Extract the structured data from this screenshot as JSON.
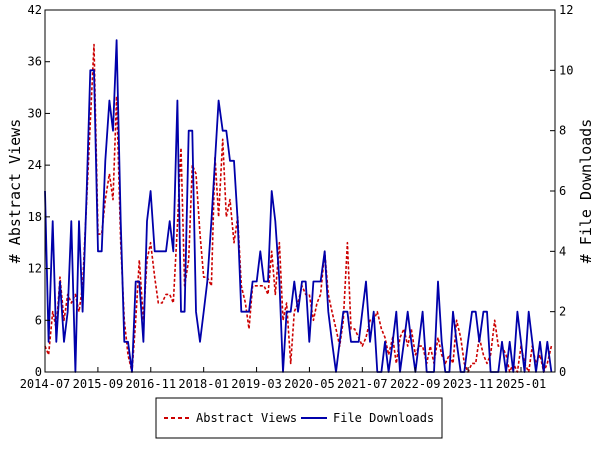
{
  "chart_data": {
    "type": "line",
    "ylabel": "# Abstract Views",
    "y2label": "# File Downloads",
    "ylim": [
      0,
      42
    ],
    "y2lim": [
      0,
      12
    ],
    "yticks": [
      0,
      6,
      12,
      18,
      24,
      30,
      36,
      42
    ],
    "y2ticks": [
      0,
      2,
      4,
      6,
      8,
      10,
      12
    ],
    "xlim": [
      2014.5,
      2025.75
    ],
    "xticks": [
      {
        "x": 2014.5,
        "label": "2014-07"
      },
      {
        "x": 2015.667,
        "label": "2015-09"
      },
      {
        "x": 2016.833,
        "label": "2016-11"
      },
      {
        "x": 2018.0,
        "label": "2018-01"
      },
      {
        "x": 2019.167,
        "label": "2019-03"
      },
      {
        "x": 2020.333,
        "label": "2020-05"
      },
      {
        "x": 2021.5,
        "label": "2021-07"
      },
      {
        "x": 2022.667,
        "label": "2022-09"
      },
      {
        "x": 2023.833,
        "label": "2023-11"
      },
      {
        "x": 2025.0,
        "label": "2025-01"
      }
    ],
    "grid": false,
    "legend_position": "bottom-center",
    "series": [
      {
        "name": "Abstract Views",
        "axis": "left",
        "color": "#cc0000",
        "dash": true,
        "points": [
          [
            2014.5,
            3
          ],
          [
            2014.58,
            2
          ],
          [
            2014.67,
            7
          ],
          [
            2014.75,
            5
          ],
          [
            2014.83,
            11
          ],
          [
            2014.92,
            6
          ],
          [
            2015.0,
            9
          ],
          [
            2015.08,
            8
          ],
          [
            2015.17,
            9
          ],
          [
            2015.25,
            7
          ],
          [
            2015.33,
            10
          ],
          [
            2015.42,
            20
          ],
          [
            2015.5,
            29
          ],
          [
            2015.58,
            38
          ],
          [
            2015.67,
            16
          ],
          [
            2015.75,
            16
          ],
          [
            2015.83,
            20
          ],
          [
            2015.92,
            23
          ],
          [
            2016.0,
            20
          ],
          [
            2016.08,
            32
          ],
          [
            2016.17,
            15
          ],
          [
            2016.25,
            6
          ],
          [
            2016.33,
            2
          ],
          [
            2016.42,
            0
          ],
          [
            2016.5,
            6
          ],
          [
            2016.58,
            13
          ],
          [
            2016.67,
            6
          ],
          [
            2016.75,
            13
          ],
          [
            2016.83,
            15
          ],
          [
            2016.92,
            11
          ],
          [
            2017.0,
            8
          ],
          [
            2017.08,
            8
          ],
          [
            2017.17,
            9
          ],
          [
            2017.25,
            9
          ],
          [
            2017.33,
            8
          ],
          [
            2017.42,
            17
          ],
          [
            2017.5,
            26
          ],
          [
            2017.58,
            10
          ],
          [
            2017.67,
            13
          ],
          [
            2017.75,
            24
          ],
          [
            2017.83,
            23
          ],
          [
            2017.92,
            16
          ],
          [
            2018.0,
            11
          ],
          [
            2018.08,
            11
          ],
          [
            2018.17,
            10
          ],
          [
            2018.25,
            25
          ],
          [
            2018.33,
            18
          ],
          [
            2018.42,
            27
          ],
          [
            2018.5,
            18
          ],
          [
            2018.58,
            20
          ],
          [
            2018.67,
            15
          ],
          [
            2018.75,
            18
          ],
          [
            2018.83,
            10
          ],
          [
            2018.92,
            8
          ],
          [
            2019.0,
            5
          ],
          [
            2019.08,
            10
          ],
          [
            2019.17,
            10
          ],
          [
            2019.25,
            10
          ],
          [
            2019.33,
            10
          ],
          [
            2019.42,
            9
          ],
          [
            2019.5,
            14
          ],
          [
            2019.58,
            9
          ],
          [
            2019.67,
            15
          ],
          [
            2019.75,
            6
          ],
          [
            2019.83,
            8
          ],
          [
            2019.92,
            1
          ],
          [
            2020.0,
            7
          ],
          [
            2020.08,
            8
          ],
          [
            2020.17,
            10
          ],
          [
            2020.25,
            9
          ],
          [
            2020.33,
            9
          ],
          [
            2020.42,
            6
          ],
          [
            2020.5,
            8
          ],
          [
            2020.58,
            9
          ],
          [
            2020.67,
            14
          ],
          [
            2020.75,
            9
          ],
          [
            2020.83,
            7
          ],
          [
            2020.92,
            5
          ],
          [
            2021.0,
            3
          ],
          [
            2021.08,
            6
          ],
          [
            2021.17,
            15
          ],
          [
            2021.25,
            5
          ],
          [
            2021.33,
            5
          ],
          [
            2021.42,
            4
          ],
          [
            2021.5,
            3
          ],
          [
            2021.58,
            4
          ],
          [
            2021.67,
            6
          ],
          [
            2021.75,
            6
          ],
          [
            2021.83,
            7
          ],
          [
            2021.92,
            5
          ],
          [
            2022.0,
            4
          ],
          [
            2022.08,
            2
          ],
          [
            2022.17,
            4
          ],
          [
            2022.25,
            1
          ],
          [
            2022.33,
            4
          ],
          [
            2022.42,
            5
          ],
          [
            2022.5,
            3
          ],
          [
            2022.58,
            5
          ],
          [
            2022.67,
            2
          ],
          [
            2022.75,
            3
          ],
          [
            2022.83,
            3
          ],
          [
            2022.92,
            1
          ],
          [
            2023.0,
            3
          ],
          [
            2023.08,
            1
          ],
          [
            2023.17,
            4
          ],
          [
            2023.25,
            2
          ],
          [
            2023.33,
            1
          ],
          [
            2023.42,
            2
          ],
          [
            2023.5,
            1
          ],
          [
            2023.58,
            6
          ],
          [
            2023.67,
            4
          ],
          [
            2023.75,
            1
          ],
          [
            2023.83,
            0
          ],
          [
            2023.92,
            1
          ],
          [
            2024.0,
            1
          ],
          [
            2024.08,
            4
          ],
          [
            2024.17,
            2
          ],
          [
            2024.25,
            1
          ],
          [
            2024.33,
            2
          ],
          [
            2024.42,
            6
          ],
          [
            2024.5,
            3
          ],
          [
            2024.58,
            3
          ],
          [
            2024.67,
            2
          ],
          [
            2024.75,
            0
          ],
          [
            2024.83,
            1
          ],
          [
            2024.92,
            0
          ],
          [
            2025.0,
            3
          ],
          [
            2025.08,
            1
          ],
          [
            2025.17,
            0
          ],
          [
            2025.25,
            3
          ],
          [
            2025.33,
            1
          ],
          [
            2025.42,
            2
          ],
          [
            2025.5,
            0
          ],
          [
            2025.58,
            1
          ],
          [
            2025.67,
            3
          ]
        ]
      },
      {
        "name": "File Downloads",
        "axis": "right",
        "color": "#0000aa",
        "dash": false,
        "points": [
          [
            2014.5,
            6
          ],
          [
            2014.58,
            1
          ],
          [
            2014.67,
            5
          ],
          [
            2014.75,
            1
          ],
          [
            2014.83,
            3
          ],
          [
            2014.92,
            1
          ],
          [
            2015.0,
            2
          ],
          [
            2015.08,
            5
          ],
          [
            2015.17,
            0
          ],
          [
            2015.25,
            5
          ],
          [
            2015.33,
            2
          ],
          [
            2015.42,
            6
          ],
          [
            2015.5,
            10
          ],
          [
            2015.58,
            10
          ],
          [
            2015.67,
            4
          ],
          [
            2015.75,
            4
          ],
          [
            2015.83,
            7
          ],
          [
            2015.92,
            9
          ],
          [
            2016.0,
            8
          ],
          [
            2016.08,
            11
          ],
          [
            2016.17,
            5
          ],
          [
            2016.25,
            1
          ],
          [
            2016.33,
            1
          ],
          [
            2016.42,
            0
          ],
          [
            2016.5,
            3
          ],
          [
            2016.58,
            3
          ],
          [
            2016.67,
            1
          ],
          [
            2016.75,
            5
          ],
          [
            2016.83,
            6
          ],
          [
            2016.92,
            4
          ],
          [
            2017.0,
            4
          ],
          [
            2017.08,
            4
          ],
          [
            2017.17,
            4
          ],
          [
            2017.25,
            5
          ],
          [
            2017.33,
            4
          ],
          [
            2017.42,
            9
          ],
          [
            2017.5,
            2
          ],
          [
            2017.58,
            2
          ],
          [
            2017.67,
            8
          ],
          [
            2017.75,
            8
          ],
          [
            2017.83,
            2
          ],
          [
            2017.92,
            1
          ],
          [
            2018.0,
            2
          ],
          [
            2018.08,
            3
          ],
          [
            2018.17,
            5
          ],
          [
            2018.25,
            7
          ],
          [
            2018.33,
            9
          ],
          [
            2018.42,
            8
          ],
          [
            2018.5,
            8
          ],
          [
            2018.58,
            7
          ],
          [
            2018.67,
            7
          ],
          [
            2018.75,
            5
          ],
          [
            2018.83,
            2
          ],
          [
            2018.92,
            2
          ],
          [
            2019.0,
            2
          ],
          [
            2019.08,
            3
          ],
          [
            2019.17,
            3
          ],
          [
            2019.25,
            4
          ],
          [
            2019.33,
            3
          ],
          [
            2019.42,
            3
          ],
          [
            2019.5,
            6
          ],
          [
            2019.58,
            5
          ],
          [
            2019.67,
            3
          ],
          [
            2019.75,
            0
          ],
          [
            2019.83,
            2
          ],
          [
            2019.92,
            2
          ],
          [
            2020.0,
            3
          ],
          [
            2020.08,
            2
          ],
          [
            2020.17,
            3
          ],
          [
            2020.25,
            3
          ],
          [
            2020.33,
            1
          ],
          [
            2020.42,
            3
          ],
          [
            2020.5,
            3
          ],
          [
            2020.58,
            3
          ],
          [
            2020.67,
            4
          ],
          [
            2020.75,
            2
          ],
          [
            2020.83,
            1
          ],
          [
            2020.92,
            0
          ],
          [
            2021.0,
            1
          ],
          [
            2021.08,
            2
          ],
          [
            2021.17,
            2
          ],
          [
            2021.25,
            1
          ],
          [
            2021.33,
            1
          ],
          [
            2021.42,
            1
          ],
          [
            2021.5,
            2
          ],
          [
            2021.58,
            3
          ],
          [
            2021.67,
            1
          ],
          [
            2021.75,
            2
          ],
          [
            2021.83,
            0
          ],
          [
            2021.92,
            0
          ],
          [
            2022.0,
            1
          ],
          [
            2022.08,
            0
          ],
          [
            2022.17,
            1
          ],
          [
            2022.25,
            2
          ],
          [
            2022.33,
            0
          ],
          [
            2022.42,
            1
          ],
          [
            2022.5,
            2
          ],
          [
            2022.58,
            1
          ],
          [
            2022.67,
            0
          ],
          [
            2022.75,
            1
          ],
          [
            2022.83,
            2
          ],
          [
            2022.92,
            0
          ],
          [
            2023.0,
            0
          ],
          [
            2023.08,
            0
          ],
          [
            2023.17,
            3
          ],
          [
            2023.25,
            1
          ],
          [
            2023.33,
            0
          ],
          [
            2023.42,
            0
          ],
          [
            2023.5,
            2
          ],
          [
            2023.58,
            1
          ],
          [
            2023.67,
            0
          ],
          [
            2023.75,
            0
          ],
          [
            2023.83,
            1
          ],
          [
            2023.92,
            2
          ],
          [
            2024.0,
            2
          ],
          [
            2024.08,
            1
          ],
          [
            2024.17,
            2
          ],
          [
            2024.25,
            2
          ],
          [
            2024.33,
            0
          ],
          [
            2024.42,
            0
          ],
          [
            2024.5,
            0
          ],
          [
            2024.58,
            1
          ],
          [
            2024.67,
            0
          ],
          [
            2024.75,
            1
          ],
          [
            2024.83,
            0
          ],
          [
            2024.92,
            2
          ],
          [
            2025.0,
            1
          ],
          [
            2025.08,
            0
          ],
          [
            2025.17,
            2
          ],
          [
            2025.25,
            1
          ],
          [
            2025.33,
            0
          ],
          [
            2025.42,
            1
          ],
          [
            2025.5,
            0
          ],
          [
            2025.58,
            1
          ],
          [
            2025.67,
            0
          ]
        ]
      }
    ]
  }
}
